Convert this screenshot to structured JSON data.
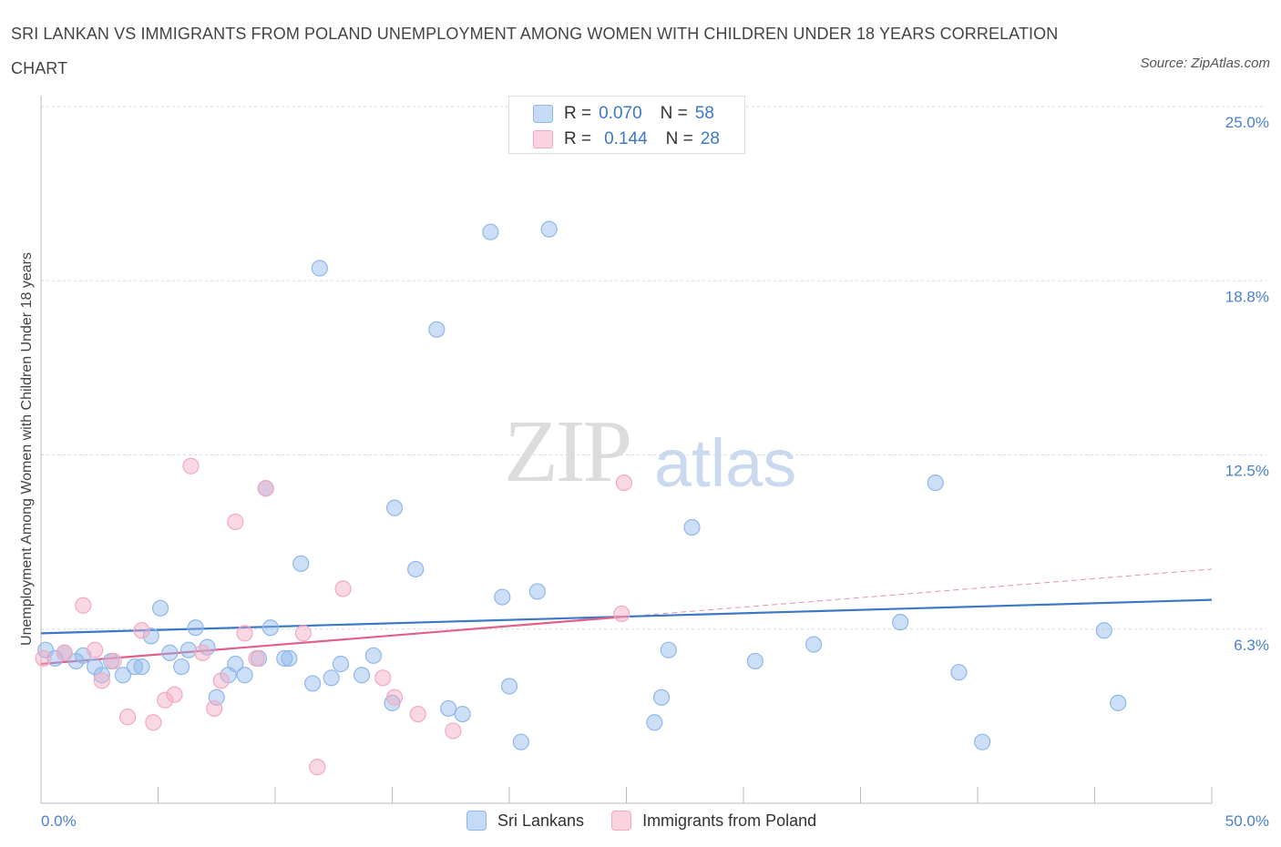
{
  "title": "SRI LANKAN VS IMMIGRANTS FROM POLAND UNEMPLOYMENT AMONG WOMEN WITH CHILDREN UNDER 18 YEARS CORRELATION CHART",
  "source": "Source: ZipAtlas.com",
  "watermark": {
    "zip": "ZIP",
    "atlas": "atlas"
  },
  "legend": {
    "r_label": "R =",
    "n_label": "N =",
    "series": [
      {
        "r": "0.070",
        "n": "58"
      },
      {
        "r": "0.144",
        "n": "28"
      }
    ]
  },
  "chart_data": {
    "type": "scatter",
    "ylabel": "Unemployment Among Women with Children Under 18 years",
    "xlim": [
      0,
      50
    ],
    "ylim": [
      0,
      25
    ],
    "x_tick_labels": {
      "left": "0.0%",
      "right": "50.0%"
    },
    "y_ticks": [
      {
        "value": 25.0,
        "label": "25.0%"
      },
      {
        "value": 18.75,
        "label": "18.8%"
      },
      {
        "value": 12.5,
        "label": "12.5%"
      },
      {
        "value": 6.25,
        "label": "6.3%"
      }
    ],
    "grid": "horizontal dashed",
    "series": [
      {
        "name": "Sri Lankans",
        "color": "#8fb8ea",
        "line_color": "#3b78c8",
        "trend": [
          [
            0,
            6.1
          ],
          [
            50,
            7.3
          ]
        ],
        "points": [
          [
            0.2,
            5.5
          ],
          [
            0.6,
            5.2
          ],
          [
            1.0,
            5.4
          ],
          [
            1.5,
            5.1
          ],
          [
            1.8,
            5.3
          ],
          [
            2.3,
            4.9
          ],
          [
            2.6,
            4.6
          ],
          [
            3.0,
            5.1
          ],
          [
            3.5,
            4.6
          ],
          [
            4.0,
            4.9
          ],
          [
            4.3,
            4.9
          ],
          [
            4.7,
            6.0
          ],
          [
            5.1,
            7.0
          ],
          [
            5.5,
            5.4
          ],
          [
            6.0,
            4.9
          ],
          [
            6.3,
            5.5
          ],
          [
            6.6,
            6.3
          ],
          [
            7.1,
            5.6
          ],
          [
            7.5,
            3.8
          ],
          [
            8.0,
            4.6
          ],
          [
            8.3,
            5.0
          ],
          [
            8.7,
            4.6
          ],
          [
            9.3,
            5.2
          ],
          [
            9.6,
            11.3
          ],
          [
            9.8,
            6.3
          ],
          [
            10.4,
            5.2
          ],
          [
            10.6,
            5.2
          ],
          [
            11.1,
            8.6
          ],
          [
            11.6,
            4.3
          ],
          [
            11.9,
            19.2
          ],
          [
            12.4,
            4.5
          ],
          [
            12.8,
            5.0
          ],
          [
            13.7,
            4.6
          ],
          [
            14.2,
            5.3
          ],
          [
            15.0,
            3.6
          ],
          [
            15.1,
            10.6
          ],
          [
            16.0,
            8.4
          ],
          [
            16.9,
            17.0
          ],
          [
            17.4,
            3.4
          ],
          [
            18.0,
            3.2
          ],
          [
            19.2,
            20.5
          ],
          [
            19.7,
            7.4
          ],
          [
            20.0,
            4.2
          ],
          [
            20.5,
            2.2
          ],
          [
            21.2,
            7.6
          ],
          [
            21.7,
            20.6
          ],
          [
            26.2,
            2.9
          ],
          [
            26.8,
            5.5
          ],
          [
            26.5,
            3.8
          ],
          [
            27.8,
            9.9
          ],
          [
            30.5,
            5.1
          ],
          [
            33.0,
            5.7
          ],
          [
            36.7,
            6.5
          ],
          [
            38.2,
            11.5
          ],
          [
            39.2,
            4.7
          ],
          [
            40.2,
            2.2
          ],
          [
            45.4,
            6.2
          ],
          [
            46.0,
            3.6
          ]
        ]
      },
      {
        "name": "Immigrants from Poland",
        "color": "#f4a9c0",
        "line_color": "#e0608a",
        "trend": [
          [
            0,
            5.0
          ],
          [
            25,
            6.7
          ]
        ],
        "trend_dashed": [
          [
            25,
            6.7
          ],
          [
            50,
            8.4
          ]
        ],
        "points": [
          [
            0.1,
            5.2
          ],
          [
            1.0,
            5.4
          ],
          [
            1.8,
            7.1
          ],
          [
            2.3,
            5.5
          ],
          [
            2.6,
            4.4
          ],
          [
            3.1,
            5.1
          ],
          [
            3.7,
            3.1
          ],
          [
            4.3,
            6.2
          ],
          [
            4.8,
            2.9
          ],
          [
            5.3,
            3.7
          ],
          [
            5.7,
            3.9
          ],
          [
            6.4,
            12.1
          ],
          [
            6.9,
            5.4
          ],
          [
            7.4,
            3.4
          ],
          [
            7.7,
            4.4
          ],
          [
            8.3,
            10.1
          ],
          [
            8.7,
            6.1
          ],
          [
            9.2,
            5.2
          ],
          [
            9.6,
            11.3
          ],
          [
            11.2,
            6.1
          ],
          [
            11.8,
            1.3
          ],
          [
            12.9,
            7.7
          ],
          [
            14.6,
            4.5
          ],
          [
            15.1,
            3.8
          ],
          [
            16.1,
            3.2
          ],
          [
            17.6,
            2.6
          ],
          [
            24.9,
            11.5
          ],
          [
            24.8,
            6.8
          ]
        ]
      }
    ]
  }
}
